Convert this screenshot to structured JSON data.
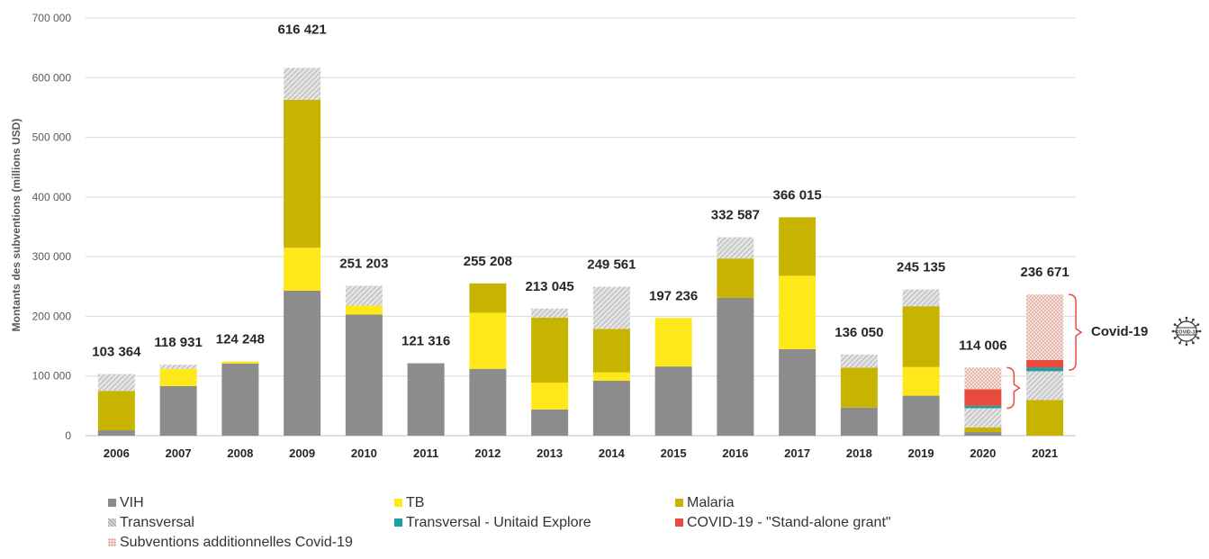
{
  "chart_data": {
    "type": "bar",
    "stacked": true,
    "ylabel": "Montants des subventions (millions USD)",
    "xlabel": "",
    "ylim": [
      0,
      700000
    ],
    "yticks": [
      0,
      100000,
      200000,
      300000,
      400000,
      500000,
      600000,
      700000
    ],
    "ytick_labels": [
      "0",
      "100 000",
      "200 000",
      "300 000",
      "400 000",
      "500 000",
      "600 000",
      "700 000"
    ],
    "grid": true,
    "legend_position": "bottom",
    "categories": [
      "2006",
      "2007",
      "2008",
      "2009",
      "2010",
      "2011",
      "2012",
      "2013",
      "2014",
      "2015",
      "2016",
      "2017",
      "2018",
      "2019",
      "2020",
      "2021"
    ],
    "totals": [
      103364,
      118931,
      124248,
      616421,
      251203,
      121316,
      255208,
      213045,
      249561,
      197236,
      332587,
      366015,
      136050,
      245135,
      114006,
      236671
    ],
    "total_labels": [
      "103 364",
      "118 931",
      "124 248",
      "616 421",
      "251 203",
      "121 316",
      "255 208",
      "213 045",
      "249 561",
      "197 236",
      "332 587",
      "366 015",
      "136 050",
      "245 135",
      "114 006",
      "236 671"
    ],
    "series": [
      {
        "name": "VIH",
        "color": "#8c8c8c",
        "pattern": "solid",
        "values": [
          9000,
          83000,
          121000,
          243000,
          203000,
          121316,
          112000,
          44000,
          92000,
          116000,
          231000,
          145000,
          47000,
          67000,
          6000,
          0
        ]
      },
      {
        "name": "TB",
        "color": "#ffe81a",
        "pattern": "solid",
        "values": [
          0,
          29000,
          3248,
          72000,
          15000,
          0,
          94000,
          45000,
          14000,
          81236,
          0,
          123000,
          0,
          48000,
          0,
          0
        ]
      },
      {
        "name": "Malaria",
        "color": "#c8b400",
        "pattern": "solid",
        "values": [
          66000,
          0,
          0,
          248000,
          0,
          0,
          49208,
          109000,
          73000,
          0,
          66000,
          98015,
          67000,
          102000,
          8000,
          60000
        ]
      },
      {
        "name": "Transversal",
        "color": "#c9c9c9",
        "pattern": "hatch",
        "values": [
          28364,
          6931,
          0,
          53421,
          33203,
          0,
          0,
          15045,
          70561,
          0,
          35587,
          0,
          22050,
          28135,
          32000,
          48000
        ]
      },
      {
        "name": "Transversal - Unitaid Explore",
        "color": "#1d9fa8",
        "pattern": "solid",
        "values": [
          0,
          0,
          0,
          0,
          0,
          0,
          0,
          0,
          0,
          0,
          0,
          0,
          0,
          0,
          4000,
          6000
        ]
      },
      {
        "name": "COVID-19 - \"Stand-alone grant\"",
        "color": "#e84b3c",
        "pattern": "solid",
        "values": [
          0,
          0,
          0,
          0,
          0,
          0,
          0,
          0,
          0,
          0,
          0,
          0,
          0,
          0,
          28000,
          13000
        ]
      },
      {
        "name": "Subventions additionnelles Covid-19",
        "color": "#f2c9c0",
        "pattern": "dots",
        "values": [
          0,
          0,
          0,
          0,
          0,
          0,
          0,
          0,
          0,
          0,
          0,
          0,
          0,
          0,
          36006,
          109671
        ]
      }
    ],
    "annotations": {
      "covid_label": "Covid-19",
      "covid_icon_text": "COVID-19",
      "brackets": [
        {
          "year": "2020",
          "from": 46000,
          "to": 114006
        },
        {
          "year": "2021",
          "from": 110000,
          "to": 236671
        }
      ]
    }
  }
}
